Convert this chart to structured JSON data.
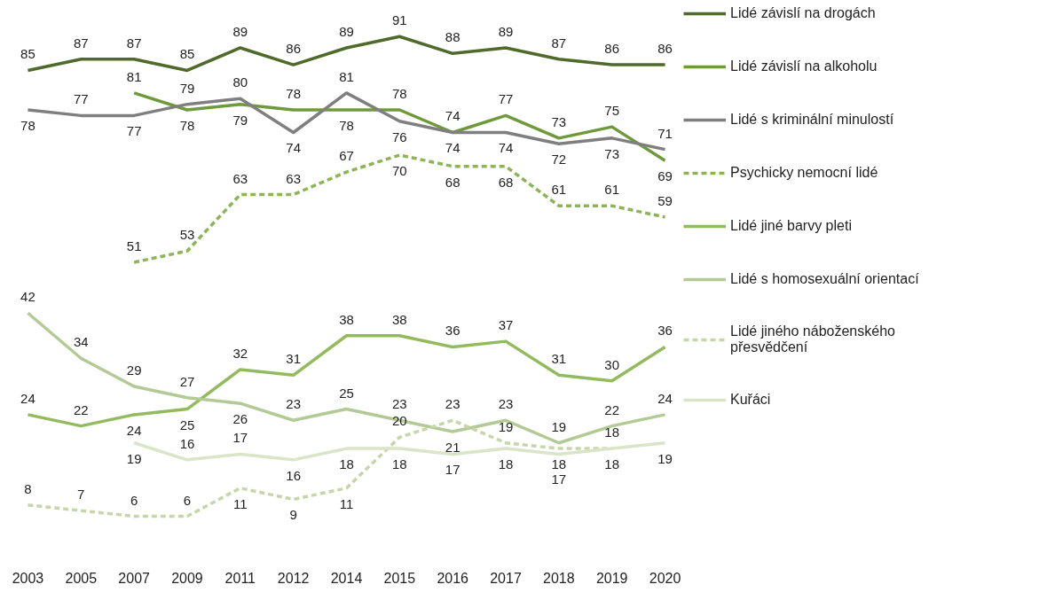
{
  "chart_data": {
    "type": "line",
    "categories": [
      "2003",
      "2005",
      "2007",
      "2009",
      "2011",
      "2012",
      "2014",
      "2015",
      "2016",
      "2017",
      "2018",
      "2019",
      "2020"
    ],
    "series": [
      {
        "name": "Lidé závislí na drogách",
        "color": "#4f6a2a",
        "values": [
          85,
          87,
          87,
          85,
          89,
          86,
          89,
          91,
          88,
          89,
          87,
          86,
          86
        ]
      },
      {
        "name": "Lidé závislí na alkoholu",
        "color": "#70993c",
        "values": [
          null,
          null,
          81,
          78,
          79,
          78,
          78,
          78,
          74,
          77,
          73,
          75,
          69
        ]
      },
      {
        "name": "Lidé s kriminální minulostí",
        "color": "#7f7f80",
        "values": [
          78,
          77,
          77,
          79,
          80,
          74,
          81,
          76,
          74,
          74,
          72,
          73,
          71
        ]
      },
      {
        "name": "Psychicky nemocní lidé",
        "color": "#8db456",
        "line_style": "dashed",
        "values": [
          null,
          null,
          51,
          53,
          63,
          63,
          67,
          70,
          68,
          68,
          61,
          61,
          59
        ]
      },
      {
        "name": "Lidé jiné barvy pleti",
        "color": "#93bb5e",
        "values": [
          24,
          22,
          24,
          25,
          32,
          31,
          38,
          38,
          36,
          37,
          31,
          30,
          36
        ]
      },
      {
        "name": "Lidé s homosexuální orientací",
        "color": "#b4ca96",
        "values": [
          42,
          34,
          29,
          27,
          26,
          23,
          25,
          23,
          21,
          23,
          19,
          22,
          24
        ]
      },
      {
        "name": "Lidé jiného náboženského přesvědčení",
        "color": "#c6d6aa",
        "line_style": "dashed",
        "values": [
          8,
          7,
          6,
          6,
          11,
          9,
          11,
          20,
          23,
          19,
          18,
          18,
          null
        ]
      },
      {
        "name": "Kuřáci",
        "color": "#d9e4c8",
        "values": [
          null,
          null,
          19,
          16,
          17,
          16,
          18,
          18,
          17,
          18,
          17,
          18,
          19
        ]
      }
    ],
    "data_labels": true,
    "legend": "right",
    "tick_labels": "x",
    "grid": false,
    "marker": "none",
    "line_style": "solid"
  }
}
